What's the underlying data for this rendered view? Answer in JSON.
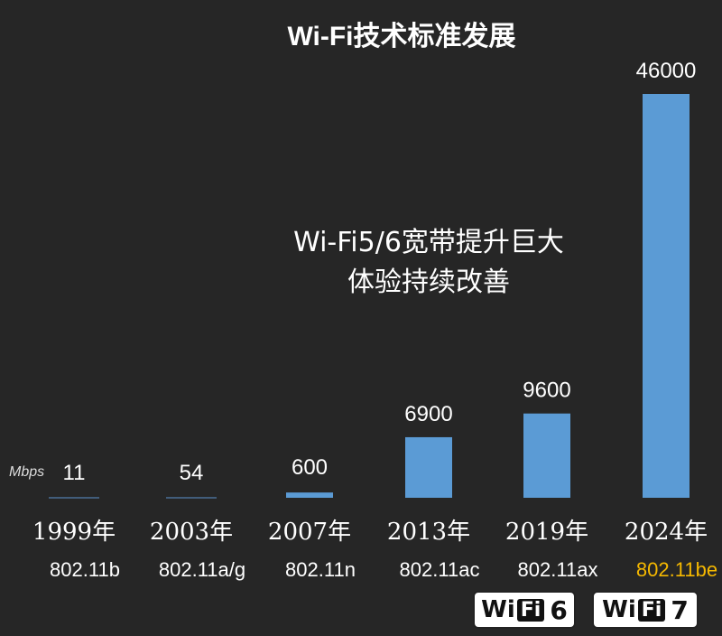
{
  "chart_data": {
    "type": "bar",
    "title": "Wi-Fi技术标准发展",
    "unit_label": "Mbps",
    "categories": [
      "1999年",
      "2003年",
      "2007年",
      "2013年",
      "2019年",
      "2024年"
    ],
    "standards": [
      "802.11b",
      "802.11a/g",
      "802.11n",
      "802.11ac",
      "802.11ax",
      "802.11be"
    ],
    "values": [
      11,
      54,
      600,
      6900,
      9600,
      46000
    ],
    "value_labels": [
      "11",
      "54",
      "600",
      "6900",
      "9600",
      "46000"
    ],
    "ylim": [
      0,
      46000
    ],
    "annotation": [
      "Wi-Fi5/6宽带提升巨大",
      "体验持续改善"
    ],
    "colors": {
      "background": "#262626",
      "bar": "#5b9bd5",
      "text": "#ffffff",
      "highlight": "#f5b800"
    },
    "highlight_standard_index": 5,
    "grid": false
  },
  "logos": [
    {
      "icon": "wifi-6-logo",
      "wi": "Wi",
      "fi": "Fi",
      "num": "6"
    },
    {
      "icon": "wifi-7-logo",
      "wi": "Wi",
      "fi": "Fi",
      "num": "7"
    }
  ]
}
